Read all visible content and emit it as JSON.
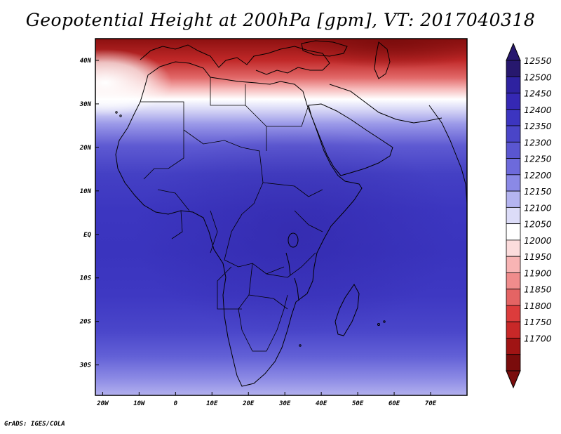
{
  "title": "Geopotential Height at 200hPa [gpm], VT: 2017040318",
  "footer": "GrADS: IGES/COLA",
  "map": {
    "lon_range": [
      -22,
      80
    ],
    "lat_range": [
      -37,
      45
    ],
    "lon_ticks": [
      {
        "value": -20,
        "label": "20W"
      },
      {
        "value": -10,
        "label": "10W"
      },
      {
        "value": 0,
        "label": "0"
      },
      {
        "value": 10,
        "label": "10E"
      },
      {
        "value": 20,
        "label": "20E"
      },
      {
        "value": 30,
        "label": "30E"
      },
      {
        "value": 40,
        "label": "40E"
      },
      {
        "value": 50,
        "label": "50E"
      },
      {
        "value": 60,
        "label": "60E"
      },
      {
        "value": 70,
        "label": "70E"
      }
    ],
    "lat_ticks": [
      {
        "value": 40,
        "label": "40N"
      },
      {
        "value": 30,
        "label": "30N"
      },
      {
        "value": 20,
        "label": "20N"
      },
      {
        "value": 10,
        "label": "10N"
      },
      {
        "value": 0,
        "label": "EQ"
      },
      {
        "value": -10,
        "label": "10S"
      },
      {
        "value": -20,
        "label": "20S"
      },
      {
        "value": -30,
        "label": "30S"
      }
    ]
  },
  "colorbar": {
    "labels": [
      "12550",
      "12500",
      "12450",
      "12400",
      "12350",
      "12300",
      "12250",
      "12200",
      "12150",
      "12100",
      "12050",
      "12000",
      "11950",
      "11900",
      "11850",
      "11800",
      "11750",
      "11700"
    ],
    "colors": [
      "#27186e",
      "#2e22a0",
      "#3528b4",
      "#3c35c0",
      "#4a45c8",
      "#5a56d0",
      "#6d6adb",
      "#8a89e6",
      "#b4b4f0",
      "#dcdcf8",
      "#ffffff",
      "#fcdcdc",
      "#f8b4b4",
      "#f08c8c",
      "#e46464",
      "#dc3c3c",
      "#c82828",
      "#a01414",
      "#7a0c0c"
    ]
  }
}
